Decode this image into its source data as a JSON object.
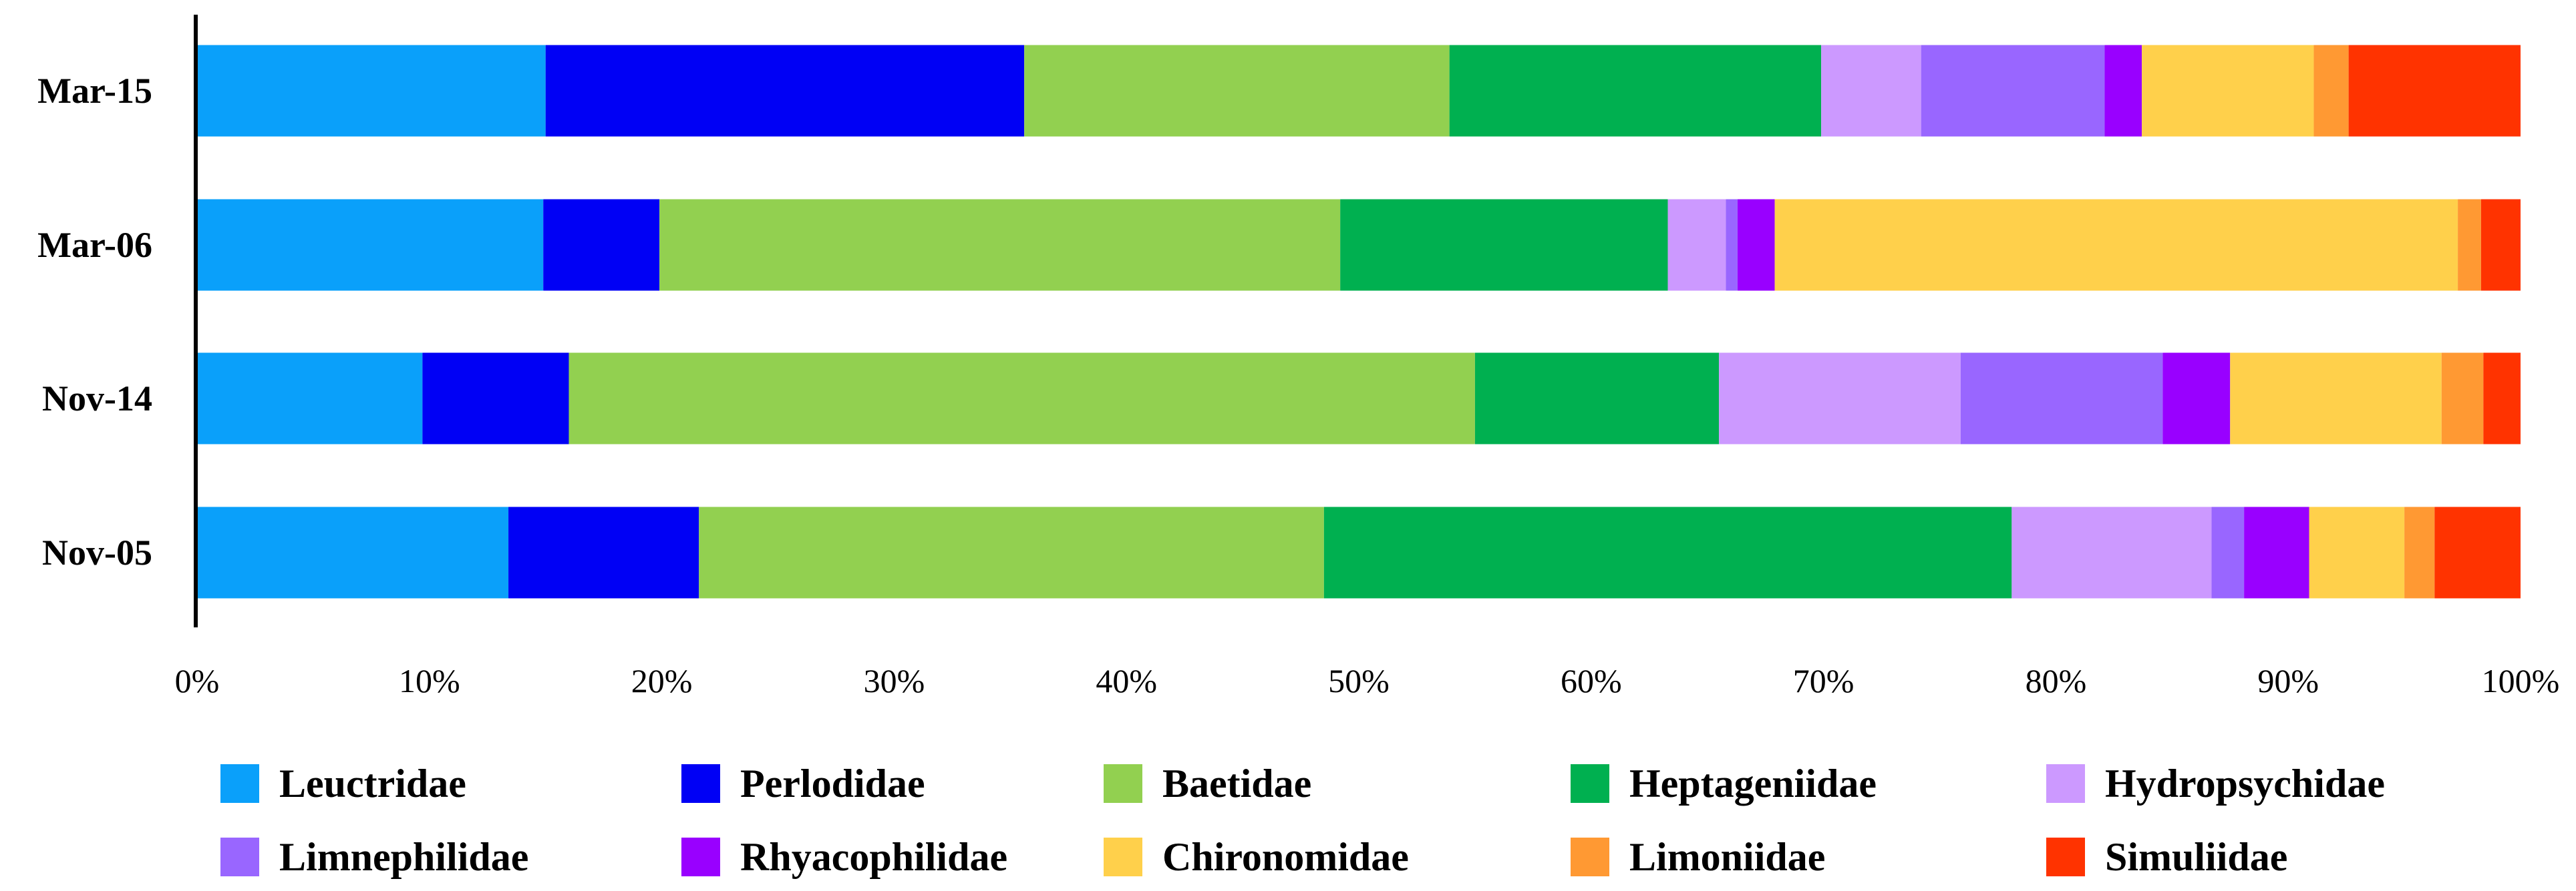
{
  "chart_data": {
    "type": "bar",
    "orientation": "horizontal",
    "stacked": true,
    "normalized": "percent",
    "title": "",
    "xlabel": "",
    "ylabel": "",
    "xlim": [
      0,
      100
    ],
    "x_ticks": [
      0,
      10,
      20,
      30,
      40,
      50,
      60,
      70,
      80,
      90,
      100
    ],
    "x_tick_labels": [
      "0%",
      "10%",
      "20%",
      "30%",
      "40%",
      "50%",
      "60%",
      "70%",
      "80%",
      "90%",
      "100%"
    ],
    "grid": false,
    "legend_position": "bottom",
    "categories": [
      "Mar-15",
      "Mar-06",
      "Nov-14",
      "Nov-05"
    ],
    "series": [
      {
        "name": "Leuctridae",
        "color": "#0AA0FA",
        "values": [
          15.0,
          14.9,
          9.7,
          13.4
        ]
      },
      {
        "name": "Perlodidae",
        "color": "#0000F5",
        "values": [
          20.6,
          5.0,
          6.3,
          8.2
        ]
      },
      {
        "name": "Baetidae",
        "color": "#92D050",
        "values": [
          18.3,
          29.3,
          39.0,
          26.9
        ]
      },
      {
        "name": "Heptageniidae",
        "color": "#00B050",
        "values": [
          16.0,
          14.1,
          10.5,
          29.6
        ]
      },
      {
        "name": "Hydropsychidae",
        "color": "#CC99FF",
        "values": [
          4.3,
          2.5,
          10.4,
          8.6
        ]
      },
      {
        "name": "Limnephilidae",
        "color": "#9966FF",
        "values": [
          7.9,
          0.5,
          8.7,
          1.4
        ]
      },
      {
        "name": "Rhyacophilidae",
        "color": "#9900FF",
        "values": [
          1.6,
          1.6,
          2.9,
          2.8
        ]
      },
      {
        "name": "Chironomidae",
        "color": "#FFD04B",
        "values": [
          7.4,
          29.4,
          9.1,
          4.1
        ]
      },
      {
        "name": "Limoniidae",
        "color": "#FF9933",
        "values": [
          1.5,
          1.0,
          1.8,
          1.3
        ]
      },
      {
        "name": "Simuliidae",
        "color": "#FF3300",
        "values": [
          7.4,
          1.7,
          1.6,
          3.7
        ]
      }
    ]
  }
}
